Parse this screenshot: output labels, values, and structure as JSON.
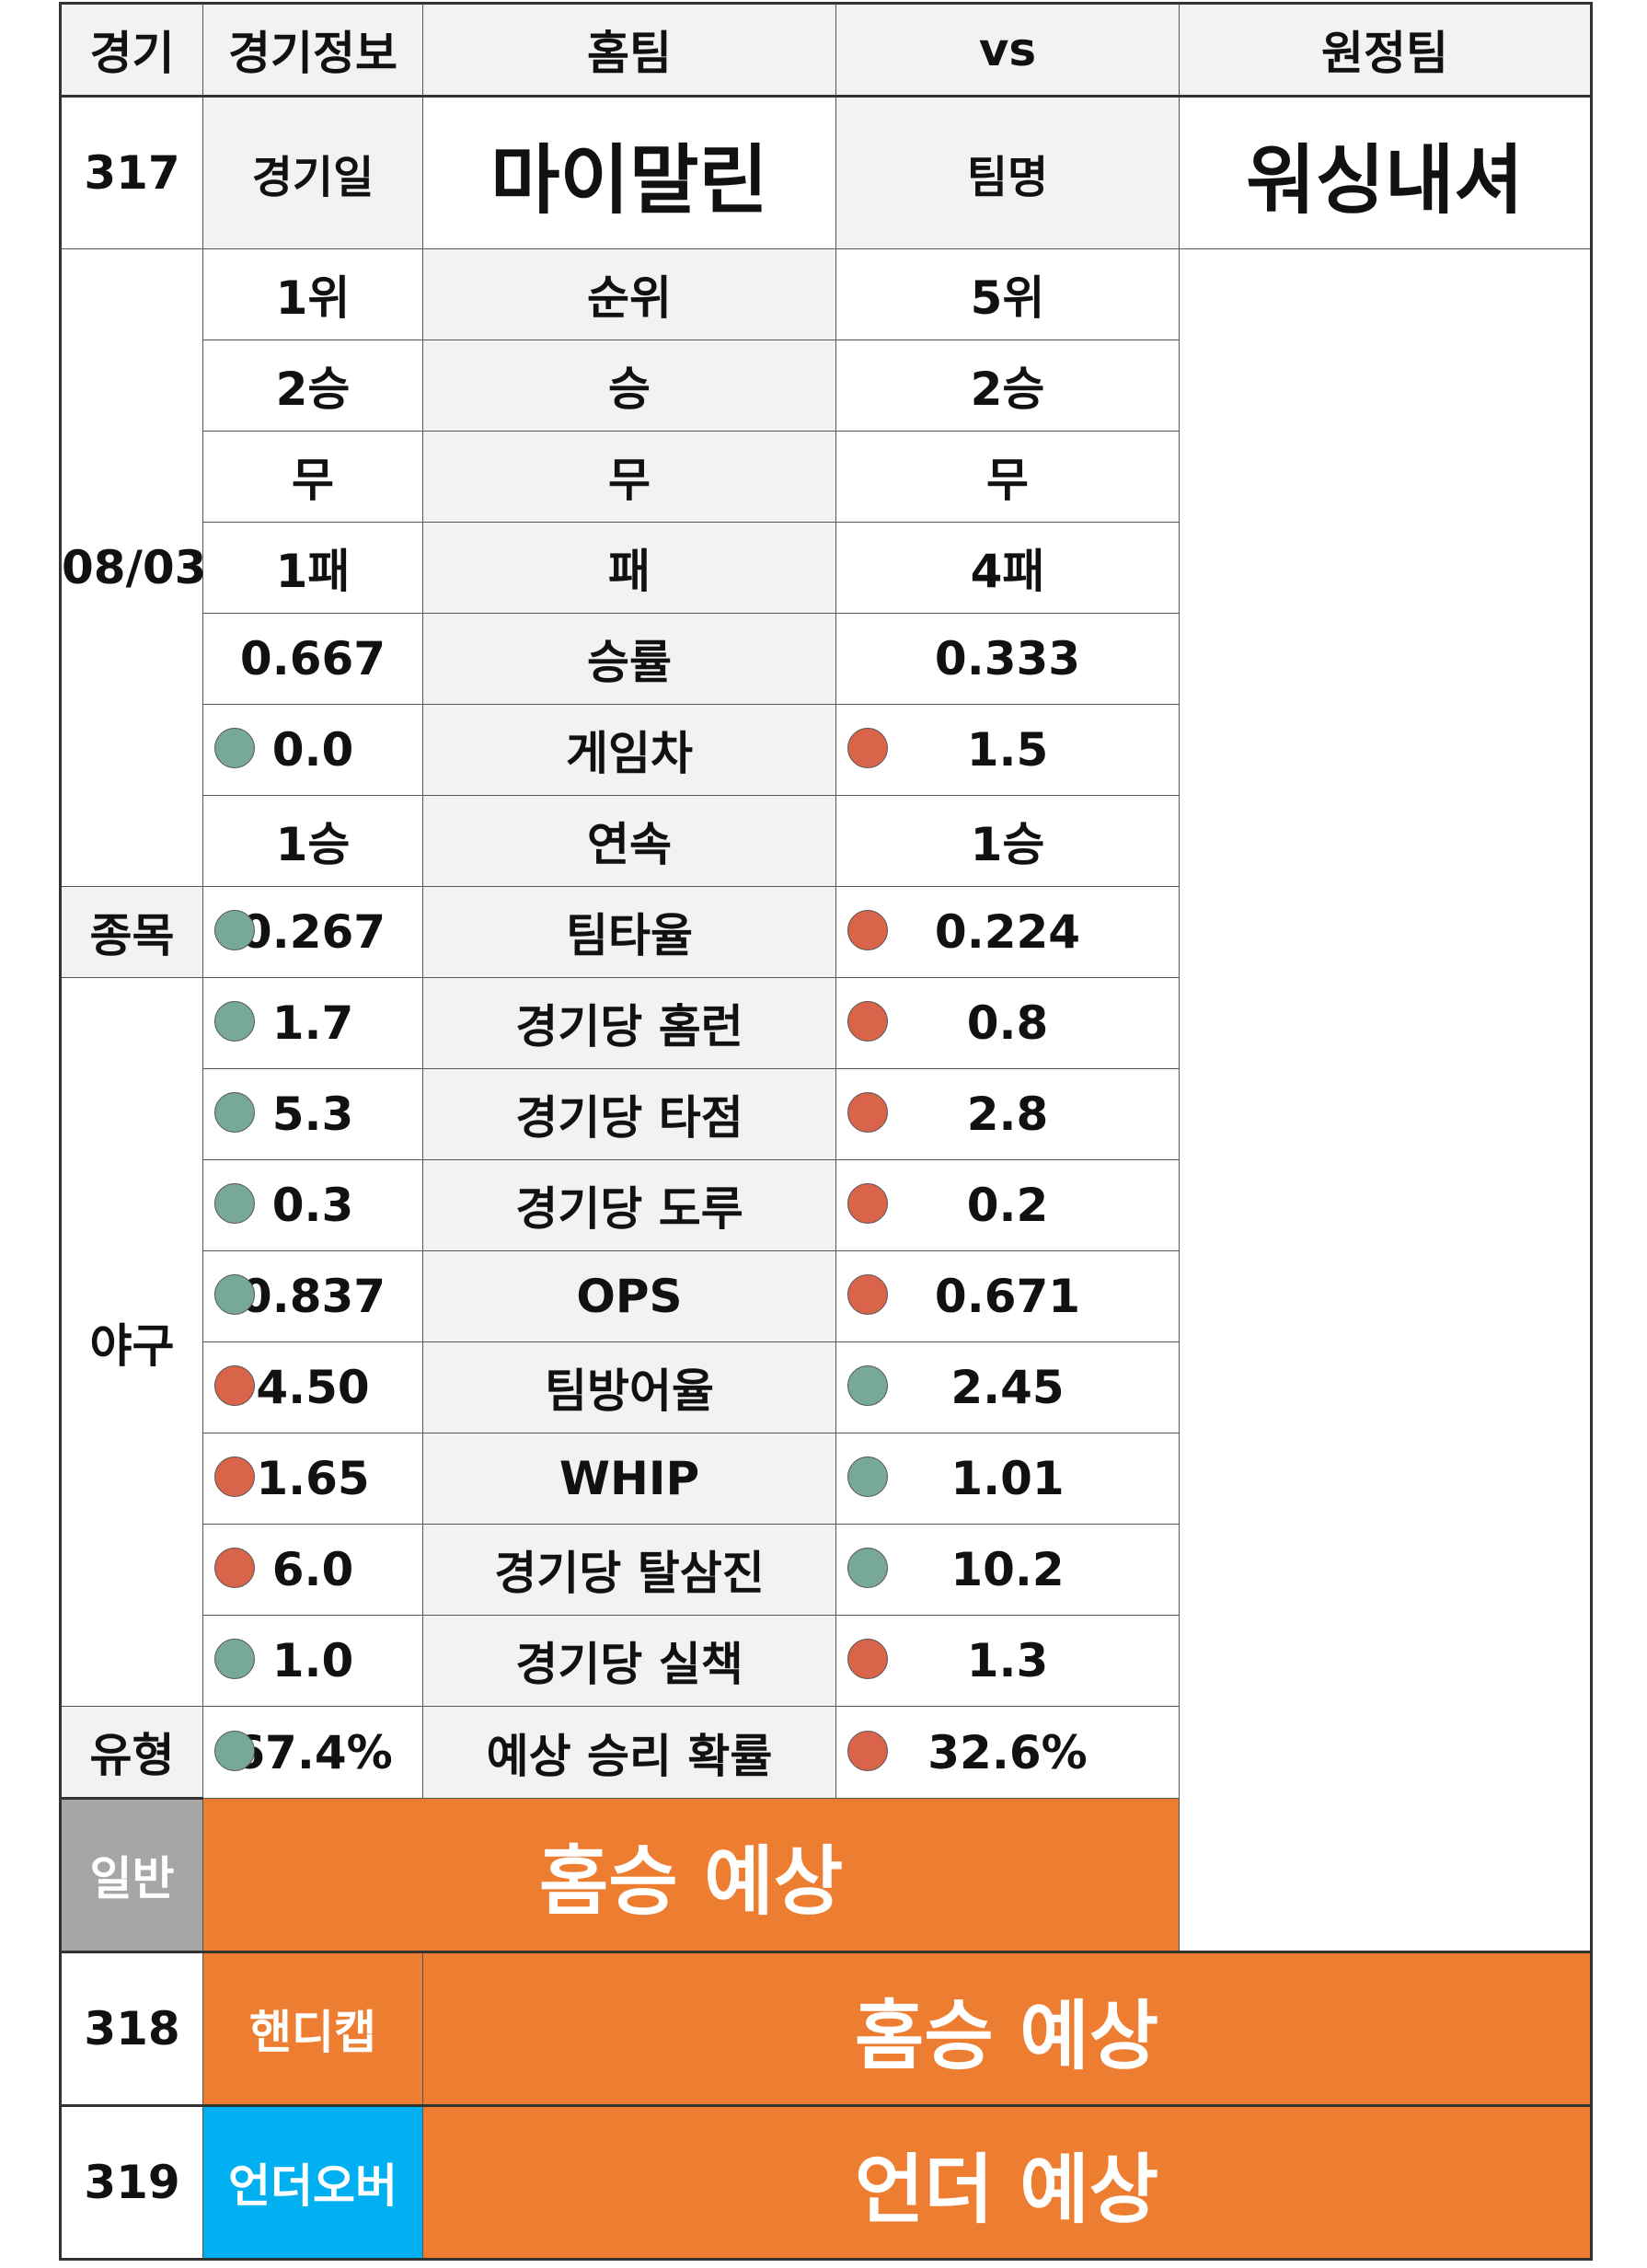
{
  "header": {
    "game": "경기",
    "game_info": "경기정보",
    "home": "홈팀",
    "vs": "vs",
    "away": "원정팀"
  },
  "team_row": {
    "date_label": "경기일",
    "home_name": "마이말린",
    "middle_label": "팀명",
    "away_name": "워싱내셔"
  },
  "game": {
    "number": "317",
    "date": "08/03",
    "sport_label": "종목",
    "sport": "야구",
    "type_label": "유형"
  },
  "stats": [
    {
      "home": "1위",
      "label": "순위",
      "away": "5위",
      "home_dot": "",
      "away_dot": ""
    },
    {
      "home": "2승",
      "label": "승",
      "away": "2승",
      "home_dot": "",
      "away_dot": ""
    },
    {
      "home": "무",
      "label": "무",
      "away": "무",
      "home_dot": "",
      "away_dot": ""
    },
    {
      "home": "1패",
      "label": "패",
      "away": "4패",
      "home_dot": "",
      "away_dot": ""
    },
    {
      "home": "0.667",
      "label": "승률",
      "away": "0.333",
      "home_dot": "",
      "away_dot": ""
    },
    {
      "home": "0.0",
      "label": "게임차",
      "away": "1.5",
      "home_dot": "green",
      "away_dot": "red"
    },
    {
      "home": "1승",
      "label": "연속",
      "away": "1승",
      "home_dot": "",
      "away_dot": ""
    },
    {
      "home": "0.267",
      "label": "팀타율",
      "away": "0.224",
      "home_dot": "green",
      "away_dot": "red"
    },
    {
      "home": "1.7",
      "label": "경기당 홈런",
      "away": "0.8",
      "home_dot": "green",
      "away_dot": "red"
    },
    {
      "home": "5.3",
      "label": "경기당 타점",
      "away": "2.8",
      "home_dot": "green",
      "away_dot": "red"
    },
    {
      "home": "0.3",
      "label": "경기당 도루",
      "away": "0.2",
      "home_dot": "green",
      "away_dot": "red"
    },
    {
      "home": "0.837",
      "label": "OPS",
      "away": "0.671",
      "home_dot": "green",
      "away_dot": "red"
    },
    {
      "home": "4.50",
      "label": "팀방어율",
      "away": "2.45",
      "home_dot": "red",
      "away_dot": "green"
    },
    {
      "home": "1.65",
      "label": "WHIP",
      "away": "1.01",
      "home_dot": "red",
      "away_dot": "green"
    },
    {
      "home": "6.0",
      "label": "경기당 탈삼진",
      "away": "10.2",
      "home_dot": "red",
      "away_dot": "green"
    },
    {
      "home": "1.0",
      "label": "경기당 실책",
      "away": "1.3",
      "home_dot": "green",
      "away_dot": "red"
    },
    {
      "home": "67.4%",
      "label": "예상 승리 확률",
      "away": "32.6%",
      "home_dot": "green",
      "away_dot": "red"
    }
  ],
  "results": [
    {
      "number": "",
      "type": "일반",
      "prediction": "홈승 예상",
      "type_color": "#a6a6a6"
    },
    {
      "number": "318",
      "type": "핸디캡",
      "prediction": "홈승 예상",
      "type_color": "#ed7d31"
    },
    {
      "number": "319",
      "type": "언더오버",
      "prediction": "언더 예상",
      "type_color": "#00b0f0"
    }
  ],
  "colors": {
    "dot_green": "#78a896",
    "dot_red": "#d9644a",
    "prediction_bg": "#ed7d31",
    "header_bg": "#f2f2f2"
  }
}
